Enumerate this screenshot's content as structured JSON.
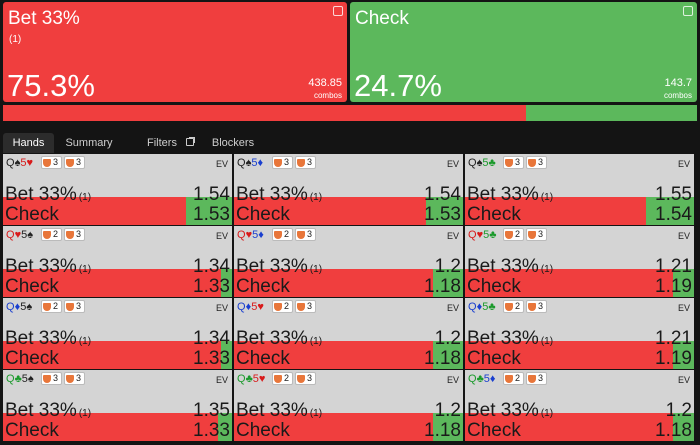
{
  "actions": [
    {
      "name": "Bet 33%",
      "size_note": "(1)",
      "frequency": 75.3,
      "frequency_label": "75.3%",
      "combos": 438.85,
      "combos_label": "combos",
      "color": "#f03e3e"
    },
    {
      "name": "Check",
      "frequency": 24.7,
      "frequency_label": "24.7%",
      "combos": 143.7,
      "combos_label": "combos",
      "color": "#5cb85c"
    }
  ],
  "tabs": [
    "Hands",
    "Summary",
    "Filters",
    "Blockers"
  ],
  "active_tab": 0,
  "ev_label": "EV",
  "suit_colors": {
    "♠": "#222222",
    "♥": "#d81b1b",
    "♦": "#1a3fcf",
    "♣": "#1b9a2c"
  },
  "hands": [
    {
      "cards": [
        {
          "rank": "Q",
          "suit": "♠"
        },
        {
          "rank": "5",
          "suit": "♥"
        }
      ],
      "badges": [
        3,
        3
      ],
      "bet_ev": 1.54,
      "check_ev": 1.53,
      "bet_freq": 80,
      "check_freq": 20
    },
    {
      "cards": [
        {
          "rank": "Q",
          "suit": "♠"
        },
        {
          "rank": "5",
          "suit": "♦"
        }
      ],
      "badges": [
        3,
        3
      ],
      "bet_ev": 1.54,
      "check_ev": 1.53,
      "bet_freq": 84,
      "check_freq": 16
    },
    {
      "cards": [
        {
          "rank": "Q",
          "suit": "♠"
        },
        {
          "rank": "5",
          "suit": "♣"
        }
      ],
      "badges": [
        3,
        3
      ],
      "bet_ev": 1.55,
      "check_ev": 1.54,
      "bet_freq": 79,
      "check_freq": 21
    },
    {
      "cards": [
        {
          "rank": "Q",
          "suit": "♥"
        },
        {
          "rank": "5",
          "suit": "♠"
        }
      ],
      "badges": [
        2,
        3
      ],
      "bet_ev": 1.34,
      "check_ev": 1.33,
      "bet_freq": 95,
      "check_freq": 5
    },
    {
      "cards": [
        {
          "rank": "Q",
          "suit": "♥"
        },
        {
          "rank": "5",
          "suit": "♦"
        }
      ],
      "badges": [
        2,
        3
      ],
      "bet_ev": 1.2,
      "check_ev": 1.18,
      "bet_freq": 87,
      "check_freq": 13
    },
    {
      "cards": [
        {
          "rank": "Q",
          "suit": "♥"
        },
        {
          "rank": "5",
          "suit": "♣"
        }
      ],
      "badges": [
        2,
        3
      ],
      "bet_ev": 1.21,
      "check_ev": 1.19,
      "bet_freq": 91,
      "check_freq": 9
    },
    {
      "cards": [
        {
          "rank": "Q",
          "suit": "♦"
        },
        {
          "rank": "5",
          "suit": "♠"
        }
      ],
      "badges": [
        2,
        3
      ],
      "bet_ev": 1.34,
      "check_ev": 1.33,
      "bet_freq": 95,
      "check_freq": 5
    },
    {
      "cards": [
        {
          "rank": "Q",
          "suit": "♦"
        },
        {
          "rank": "5",
          "suit": "♥"
        }
      ],
      "badges": [
        2,
        3
      ],
      "bet_ev": 1.2,
      "check_ev": 1.18,
      "bet_freq": 87,
      "check_freq": 13
    },
    {
      "cards": [
        {
          "rank": "Q",
          "suit": "♦"
        },
        {
          "rank": "5",
          "suit": "♣"
        }
      ],
      "badges": [
        2,
        3
      ],
      "bet_ev": 1.21,
      "check_ev": 1.19,
      "bet_freq": 91,
      "check_freq": 9
    },
    {
      "cards": [
        {
          "rank": "Q",
          "suit": "♣"
        },
        {
          "rank": "5",
          "suit": "♠"
        }
      ],
      "badges": [
        3,
        3
      ],
      "bet_ev": 1.35,
      "check_ev": 1.33,
      "bet_freq": 94,
      "check_freq": 6
    },
    {
      "cards": [
        {
          "rank": "Q",
          "suit": "♣"
        },
        {
          "rank": "5",
          "suit": "♥"
        }
      ],
      "badges": [
        2,
        3
      ],
      "bet_ev": 1.2,
      "check_ev": 1.18,
      "bet_freq": 87,
      "check_freq": 13
    },
    {
      "cards": [
        {
          "rank": "Q",
          "suit": "♣"
        },
        {
          "rank": "5",
          "suit": "♦"
        }
      ],
      "badges": [
        2,
        3
      ],
      "bet_ev": 1.2,
      "check_ev": 1.18,
      "bet_freq": 91,
      "check_freq": 9
    }
  ]
}
